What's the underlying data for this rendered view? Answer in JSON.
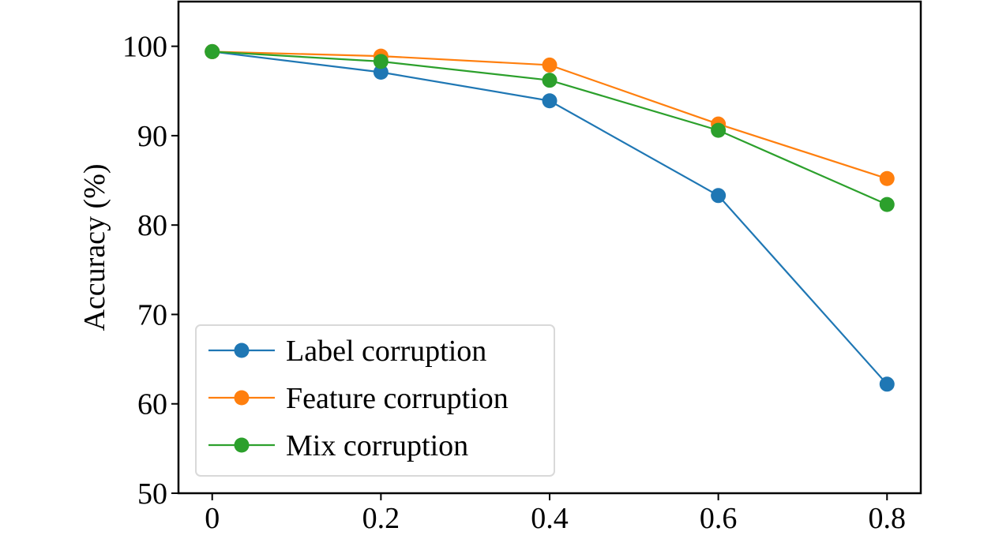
{
  "chart_data": {
    "type": "line",
    "title": "",
    "xlabel": "",
    "ylabel": "Accuracy (%)",
    "x": [
      0,
      0.2,
      0.4,
      0.6,
      0.8
    ],
    "x_tick_labels": [
      "0",
      "0.2",
      "0.4",
      "0.6",
      "0.8"
    ],
    "xlim": [
      -0.04,
      0.84
    ],
    "ylim": [
      50,
      105
    ],
    "y_ticks": [
      50,
      60,
      70,
      80,
      90,
      100
    ],
    "y_tick_labels": [
      "50",
      "60",
      "70",
      "80",
      "90",
      "100"
    ],
    "grid": false,
    "legend_position": "lower-left",
    "series": [
      {
        "name": "Label corruption",
        "color": "#1f77b4",
        "marker": "circle",
        "values": [
          99.4,
          97.1,
          93.9,
          83.3,
          62.2
        ]
      },
      {
        "name": "Feature corruption",
        "color": "#ff7f0e",
        "marker": "circle",
        "values": [
          99.4,
          98.9,
          97.9,
          91.3,
          85.2
        ]
      },
      {
        "name": "Mix corruption",
        "color": "#2ca02c",
        "marker": "circle",
        "values": [
          99.4,
          98.3,
          96.2,
          90.6,
          82.3
        ]
      }
    ]
  }
}
